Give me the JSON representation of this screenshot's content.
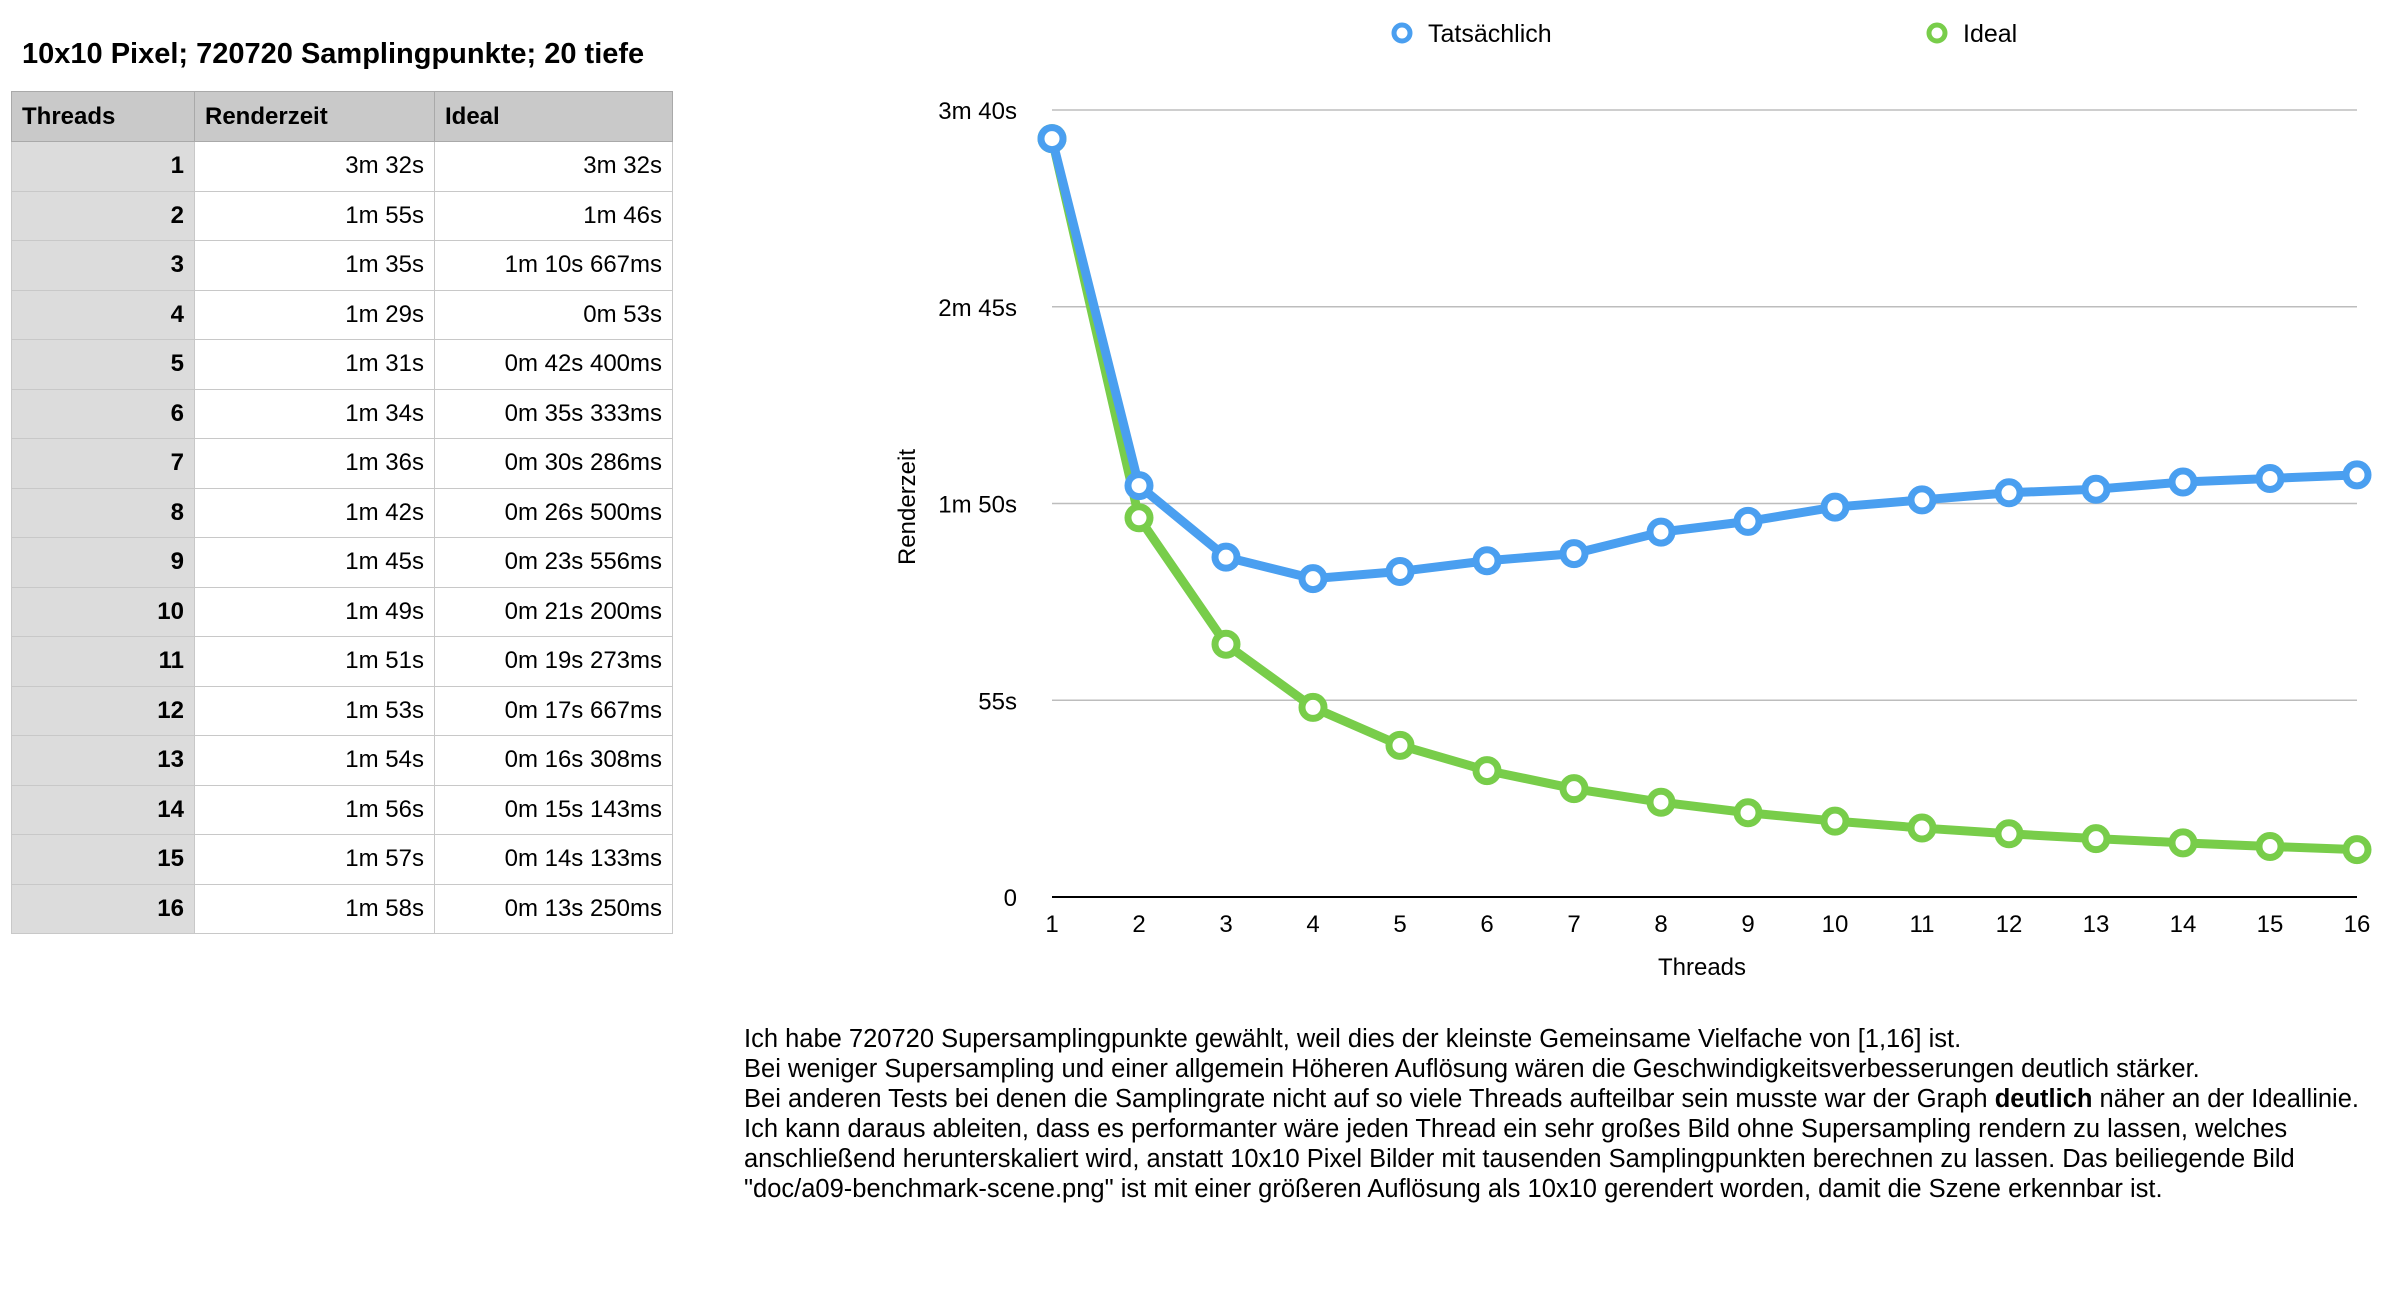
{
  "title": "10x10 Pixel; 720720 Samplingpunkte; 20 tiefe",
  "table": {
    "headers": [
      "Threads",
      "Renderzeit",
      "Ideal"
    ],
    "rows": [
      [
        "1",
        "3m 32s",
        "3m 32s"
      ],
      [
        "2",
        "1m 55s",
        "1m 46s"
      ],
      [
        "3",
        "1m 35s",
        "1m 10s 667ms"
      ],
      [
        "4",
        "1m 29s",
        "0m 53s"
      ],
      [
        "5",
        "1m 31s",
        "0m 42s 400ms"
      ],
      [
        "6",
        "1m 34s",
        "0m 35s 333ms"
      ],
      [
        "7",
        "1m 36s",
        "0m 30s 286ms"
      ],
      [
        "8",
        "1m 42s",
        "0m 26s 500ms"
      ],
      [
        "9",
        "1m 45s",
        "0m 23s 556ms"
      ],
      [
        "10",
        "1m 49s",
        "0m 21s 200ms"
      ],
      [
        "11",
        "1m 51s",
        "0m 19s 273ms"
      ],
      [
        "12",
        "1m 53s",
        "0m 17s 667ms"
      ],
      [
        "13",
        "1m 54s",
        "0m 16s 308ms"
      ],
      [
        "14",
        "1m 56s",
        "0m 15s 143ms"
      ],
      [
        "15",
        "1m 57s",
        "0m 14s 133ms"
      ],
      [
        "16",
        "1m 58s",
        "0m 13s 250ms"
      ]
    ]
  },
  "chart_data": {
    "type": "line",
    "title": "",
    "xlabel": "Threads",
    "ylabel": "Renderzeit",
    "x": [
      1,
      2,
      3,
      4,
      5,
      6,
      7,
      8,
      9,
      10,
      11,
      12,
      13,
      14,
      15,
      16
    ],
    "xlim": [
      1,
      16
    ],
    "ylim": [
      0,
      220
    ],
    "yunit": "seconds",
    "yticks": [
      {
        "value": 0,
        "label": "0"
      },
      {
        "value": 55,
        "label": "55s"
      },
      {
        "value": 110,
        "label": "1m 50s"
      },
      {
        "value": 165,
        "label": "2m 45s"
      },
      {
        "value": 220,
        "label": "3m 40s"
      }
    ],
    "grid": true,
    "legend": "top",
    "series": [
      {
        "name": "Tatsächlich",
        "color": "#4a9ff0",
        "values": [
          212,
          115,
          95,
          89,
          91,
          94,
          96,
          102,
          105,
          109,
          111,
          113,
          114,
          116,
          117,
          118
        ]
      },
      {
        "name": "Ideal",
        "color": "#78cd4a",
        "values": [
          212,
          106,
          70.667,
          53,
          42.4,
          35.333,
          30.286,
          26.5,
          23.556,
          21.2,
          19.273,
          17.667,
          16.308,
          15.143,
          14.133,
          13.25
        ]
      }
    ]
  },
  "notes": [
    "Ich habe 720720 Supersamplingpunkte gewählt, weil dies der kleinste Gemeinsame Vielfache von [1,16] ist.",
    "Bei weniger Supersampling und einer allgemein Höheren Auflösung wären die Geschwindigkeitsverbesserungen deutlich stärker.",
    {
      "before": "Bei anderen Tests bei denen die Samplingrate nicht auf so viele Threads aufteilbar sein musste war der Graph ",
      "bold": "deutlich",
      "after": " näher an der Ideallinie. Ich kann daraus ableiten, dass es performanter wäre jeden Thread ein sehr großes Bild ohne Supersampling rendern zu lassen, welches anschließend herunterskaliert wird, anstatt 10x10 Pixel Bilder mit tausenden Samplingpunkten berechnen zu lassen. Das beiliegende Bild \"doc/a09-benchmark-scene.png\" ist mit einer größeren Auflösung als 10x10 gerendert worden, damit die Szene erkennbar ist."
    }
  ]
}
